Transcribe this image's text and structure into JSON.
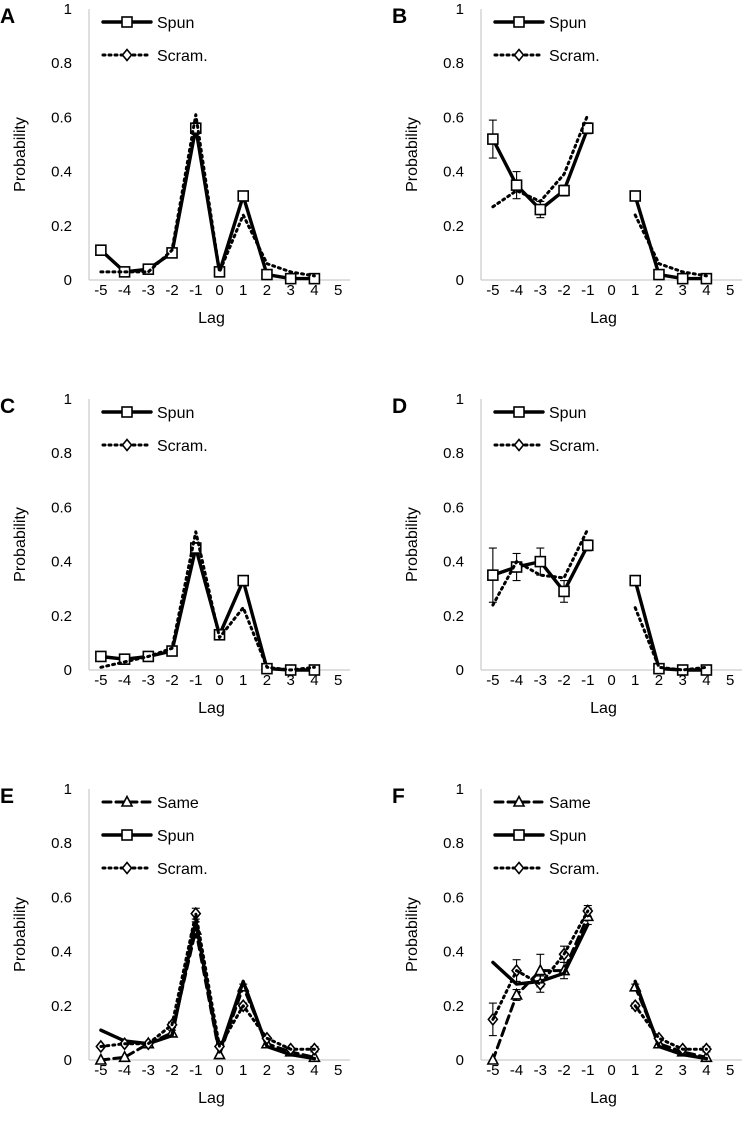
{
  "figure": {
    "colors": {
      "line": "#000000",
      "marker_fill": "#ffffff",
      "axis": "#bfbfbf",
      "background": "#ffffff"
    }
  },
  "chart_data": [
    {
      "panel": "A",
      "type": "line",
      "xlabel": "Lag",
      "ylabel": "Probability",
      "xlim": [
        -5,
        5
      ],
      "ylim": [
        0,
        1
      ],
      "xticks": [
        "-5",
        "-4",
        "-3",
        "-2",
        "-1",
        "0",
        "1",
        "2",
        "3",
        "4",
        "5"
      ],
      "yticks": [
        "0",
        "0.2",
        "0.4",
        "0.6",
        "0.8",
        "1"
      ],
      "series": [
        {
          "name": "Spun",
          "style": "solid",
          "marker": "square",
          "x": [
            -5,
            -4,
            -3,
            -2,
            -1,
            0,
            1,
            2,
            3,
            4
          ],
          "values": [
            0.11,
            0.03,
            0.04,
            0.1,
            0.56,
            0.03,
            0.31,
            0.02,
            0.005,
            0.005
          ],
          "errors": [
            0,
            0,
            0,
            0,
            0.02,
            0,
            0.01,
            0,
            0,
            0
          ]
        },
        {
          "name": "Scram.",
          "style": "dotted",
          "marker": "diamond",
          "x": [
            -5,
            -4,
            -3,
            -2,
            -1,
            0,
            1,
            2,
            3,
            4
          ],
          "values": [
            0.03,
            0.03,
            0.03,
            0.11,
            0.61,
            0.03,
            0.24,
            0.06,
            0.03,
            0.015
          ],
          "errors": [
            0,
            0,
            0,
            0.01,
            0.02,
            0,
            0.01,
            0.005,
            0,
            0
          ]
        }
      ]
    },
    {
      "panel": "B",
      "type": "line",
      "xlabel": "Lag",
      "ylabel": "Probability",
      "xlim": [
        -5,
        5
      ],
      "ylim": [
        0,
        1
      ],
      "xticks": [
        "-5",
        "-4",
        "-3",
        "-2",
        "-1",
        "0",
        "1",
        "2",
        "3",
        "4",
        "5"
      ],
      "yticks": [
        "0",
        "0.2",
        "0.4",
        "0.6",
        "0.8",
        "1"
      ],
      "series": [
        {
          "name": "Spun",
          "style": "solid",
          "marker": "square",
          "x": [
            -5,
            -4,
            -3,
            -2,
            -1,
            null,
            1,
            2,
            3,
            4
          ],
          "values": [
            0.52,
            0.35,
            0.26,
            0.33,
            0.56,
            null,
            0.31,
            0.02,
            0.005,
            0.005
          ],
          "errors": [
            0.07,
            0.05,
            0.03,
            0.02,
            0.02,
            0,
            0.01,
            0,
            0,
            0
          ]
        },
        {
          "name": "Scram.",
          "style": "dotted",
          "marker": "diamond",
          "x": [
            -5,
            -4,
            -3,
            -2,
            -1,
            null,
            1,
            2,
            3,
            4
          ],
          "values": [
            0.27,
            0.33,
            0.29,
            0.39,
            0.61,
            null,
            0.24,
            0.06,
            0.03,
            0.015
          ],
          "errors": [
            0.09,
            0.04,
            0.04,
            0.02,
            0.02,
            0,
            0.01,
            0.005,
            0,
            0
          ]
        }
      ]
    },
    {
      "panel": "C",
      "type": "line",
      "xlabel": "Lag",
      "ylabel": "Probability",
      "xlim": [
        -5,
        5
      ],
      "ylim": [
        0,
        1
      ],
      "xticks": [
        "-5",
        "-4",
        "-3",
        "-2",
        "-1",
        "0",
        "1",
        "2",
        "3",
        "4",
        "5"
      ],
      "yticks": [
        "0",
        "0.2",
        "0.4",
        "0.6",
        "0.8",
        "1"
      ],
      "series": [
        {
          "name": "Spun",
          "style": "solid",
          "marker": "square",
          "x": [
            -5,
            -4,
            -3,
            -2,
            -1,
            0,
            1,
            2,
            3,
            4
          ],
          "values": [
            0.05,
            0.04,
            0.05,
            0.07,
            0.45,
            0.13,
            0.33,
            0.005,
            0.0,
            0.0
          ],
          "errors": [
            0,
            0,
            0,
            0,
            0.02,
            0.01,
            0.01,
            0,
            0,
            0
          ]
        },
        {
          "name": "Scram.",
          "style": "dotted",
          "marker": "diamond",
          "x": [
            -5,
            -4,
            -3,
            -2,
            -1,
            0,
            1,
            2,
            3,
            4
          ],
          "values": [
            0.01,
            0.03,
            0.05,
            0.08,
            0.51,
            0.12,
            0.23,
            0.01,
            0.0,
            0.01
          ],
          "errors": [
            0,
            0,
            0,
            0,
            0.02,
            0.01,
            0.01,
            0,
            0,
            0
          ]
        }
      ]
    },
    {
      "panel": "D",
      "type": "line",
      "xlabel": "Lag",
      "ylabel": "Probability",
      "xlim": [
        -5,
        5
      ],
      "ylim": [
        0,
        1
      ],
      "xticks": [
        "-5",
        "-4",
        "-3",
        "-2",
        "-1",
        "0",
        "1",
        "2",
        "3",
        "4",
        "5"
      ],
      "yticks": [
        "0",
        "0.2",
        "0.4",
        "0.6",
        "0.8",
        "1"
      ],
      "series": [
        {
          "name": "Spun",
          "style": "solid",
          "marker": "square",
          "x": [
            -5,
            -4,
            -3,
            -2,
            -1,
            null,
            1,
            2,
            3,
            4
          ],
          "values": [
            0.35,
            0.38,
            0.4,
            0.29,
            0.46,
            null,
            0.33,
            0.005,
            0.0,
            0.0
          ],
          "errors": [
            0.1,
            0.05,
            0.05,
            0.04,
            0.02,
            0,
            0.01,
            0,
            0,
            0
          ]
        },
        {
          "name": "Scram.",
          "style": "dotted",
          "marker": "diamond",
          "x": [
            -5,
            -4,
            -3,
            -2,
            -1,
            null,
            1,
            2,
            3,
            4
          ],
          "values": [
            0.24,
            0.4,
            0.35,
            0.34,
            0.52,
            null,
            0.23,
            0.01,
            0.0,
            0.01
          ],
          "errors": [
            0.09,
            0.06,
            0.04,
            0.03,
            0.02,
            0,
            0.01,
            0,
            0,
            0
          ]
        }
      ]
    },
    {
      "panel": "E",
      "type": "line",
      "xlabel": "Lag",
      "ylabel": "Probability",
      "xlim": [
        -5,
        5
      ],
      "ylim": [
        0,
        1
      ],
      "xticks": [
        "-5",
        "-4",
        "-3",
        "-2",
        "-1",
        "0",
        "1",
        "2",
        "3",
        "4",
        "5"
      ],
      "yticks": [
        "0",
        "0.2",
        "0.4",
        "0.6",
        "0.8",
        "1"
      ],
      "series": [
        {
          "name": "Same",
          "style": "dashed",
          "marker": "triangle",
          "x": [
            -5,
            -4,
            -3,
            -2,
            -1,
            0,
            1,
            2,
            3,
            4
          ],
          "values": [
            0.0,
            0.01,
            0.06,
            0.1,
            0.48,
            0.02,
            0.27,
            0.06,
            0.03,
            0.01
          ],
          "errors": [
            0,
            0,
            0,
            0.01,
            0.03,
            0,
            0.01,
            0,
            0,
            0
          ]
        },
        {
          "name": "Spun",
          "style": "solid",
          "marker": "square",
          "x": [
            -5,
            -4,
            -3,
            -2,
            -1,
            0,
            1,
            2,
            3,
            4
          ],
          "values": [
            0.11,
            0.07,
            0.06,
            0.09,
            0.51,
            0.03,
            0.29,
            0.05,
            0.02,
            0.005
          ],
          "errors": [
            0,
            0,
            0,
            0,
            0.02,
            0,
            0.01,
            0,
            0,
            0
          ]
        },
        {
          "name": "Scram.",
          "style": "dotted",
          "marker": "diamond",
          "x": [
            -5,
            -4,
            -3,
            -2,
            -1,
            0,
            1,
            2,
            3,
            4
          ],
          "values": [
            0.05,
            0.06,
            0.06,
            0.13,
            0.54,
            0.05,
            0.2,
            0.08,
            0.04,
            0.04
          ],
          "errors": [
            0,
            0,
            0,
            0.01,
            0.02,
            0,
            0.01,
            0,
            0,
            0.01
          ]
        }
      ]
    },
    {
      "panel": "F",
      "type": "line",
      "xlabel": "Lag",
      "ylabel": "Probability",
      "xlim": [
        -5,
        5
      ],
      "ylim": [
        0,
        1
      ],
      "xticks": [
        "-5",
        "-4",
        "-3",
        "-2",
        "-1",
        "0",
        "1",
        "2",
        "3",
        "4",
        "5"
      ],
      "yticks": [
        "0",
        "0.2",
        "0.4",
        "0.6",
        "0.8",
        "1"
      ],
      "series": [
        {
          "name": "Same",
          "style": "dashed",
          "marker": "triangle",
          "x": [
            -5,
            -4,
            -3,
            -2,
            -1,
            null,
            1,
            2,
            3,
            4
          ],
          "values": [
            0.0,
            0.24,
            0.33,
            0.33,
            0.53,
            null,
            0.27,
            0.06,
            0.03,
            0.01
          ],
          "errors": [
            0,
            0.02,
            0.06,
            0.03,
            0.03,
            0,
            0.01,
            0,
            0,
            0
          ]
        },
        {
          "name": "Spun",
          "style": "solid",
          "marker": "square",
          "x": [
            -5,
            -4,
            -3,
            -2,
            -1,
            null,
            1,
            2,
            3,
            4
          ],
          "values": [
            0.36,
            0.28,
            0.29,
            0.32,
            0.5,
            null,
            0.29,
            0.05,
            0.02,
            0.005
          ],
          "errors": [
            0.07,
            0.04,
            0.02,
            0.03,
            0.02,
            0,
            0.01,
            0,
            0,
            0
          ]
        },
        {
          "name": "Scram.",
          "style": "dotted",
          "marker": "diamond",
          "x": [
            -5,
            -4,
            -3,
            -2,
            -1,
            null,
            1,
            2,
            3,
            4
          ],
          "values": [
            0.15,
            0.33,
            0.28,
            0.39,
            0.55,
            null,
            0.2,
            0.08,
            0.04,
            0.04
          ],
          "errors": [
            0.06,
            0.04,
            0.03,
            0.03,
            0.02,
            0,
            0.01,
            0,
            0,
            0.01
          ]
        }
      ]
    }
  ]
}
